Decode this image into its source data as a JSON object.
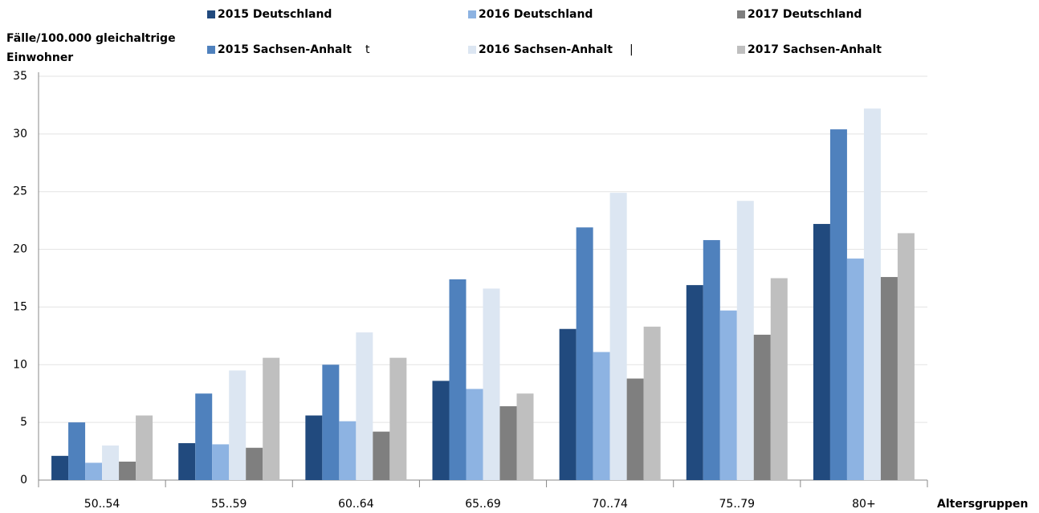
{
  "chart_data": {
    "type": "bar",
    "y_label": "Fälle/100.000 gleichaltrige Einwohner",
    "x_label": "Altersgruppen",
    "categories": [
      "50..54",
      "55..59",
      "60..64",
      "65..69",
      "70..74",
      "75..79",
      "80+"
    ],
    "series": [
      {
        "name": "2015 Deutschland",
        "color": "#214a7e",
        "values": [
          2.1,
          3.2,
          5.6,
          8.6,
          13.1,
          16.9,
          22.2
        ]
      },
      {
        "name": "2015 Sachsen-Anhalt",
        "color": "#4f81bd",
        "values": [
          5.0,
          7.5,
          10.0,
          17.4,
          21.9,
          20.8,
          30.4
        ]
      },
      {
        "name": "2016 Deutschland",
        "color": "#8db3e2",
        "values": [
          1.5,
          3.1,
          5.1,
          7.9,
          11.1,
          14.7,
          19.2
        ]
      },
      {
        "name": "2016 Sachsen-Anhalt",
        "color": "#dce6f2",
        "values": [
          3.0,
          9.5,
          12.8,
          16.6,
          24.9,
          24.2,
          32.2
        ]
      },
      {
        "name": "2017 Deutschland",
        "color": "#7f7f7f",
        "values": [
          1.6,
          2.8,
          4.2,
          6.4,
          8.8,
          12.6,
          17.6
        ]
      },
      {
        "name": "2017 Sachsen-Anhalt",
        "color": "#bfbfbf",
        "values": [
          5.6,
          10.6,
          10.6,
          7.5,
          13.3,
          17.5,
          21.4
        ]
      }
    ],
    "annotations": [
      "t",
      "|"
    ],
    "ylim": [
      0,
      35
    ],
    "yticks": [
      0,
      5,
      10,
      15,
      20,
      25,
      30,
      35
    ],
    "grid": true
  }
}
